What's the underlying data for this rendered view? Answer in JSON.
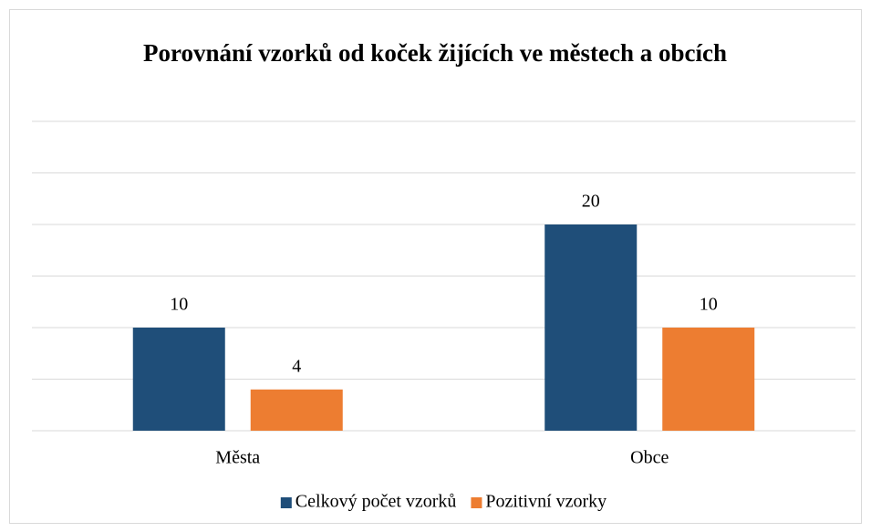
{
  "chart_data": {
    "type": "bar",
    "title": "Porovnání vzorků od koček žijících ve městech a obcích",
    "categories": [
      "Města",
      "Obce"
    ],
    "series": [
      {
        "name": "Celkový počet vzorků",
        "color": "#1f4e79",
        "values": [
          10,
          20
        ]
      },
      {
        "name": "Pozitivní vzorky",
        "color": "#ed7d31",
        "values": [
          4,
          10
        ]
      }
    ],
    "ylim": [
      0,
      30
    ],
    "yticks": [
      0,
      5,
      10,
      15,
      20,
      25,
      30
    ],
    "grid": true,
    "legend": "bottom"
  }
}
